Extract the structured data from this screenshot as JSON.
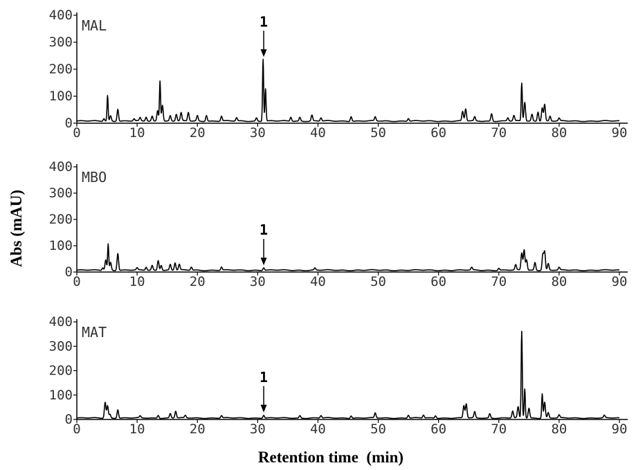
{
  "chart_data": {
    "type": "line",
    "xlabel": "Retention time  (min)",
    "ylabel": "Abs  (mAU)",
    "xlim": [
      0,
      90
    ],
    "ylim": [
      0,
      400
    ],
    "x_ticks": [
      "0",
      "10",
      "20",
      "30",
      "40",
      "50",
      "60",
      "70",
      "80",
      "90"
    ],
    "y_ticks": [
      "0",
      "100",
      "200",
      "300",
      "400"
    ],
    "grid": false,
    "legend": "none",
    "annotation_label": "1",
    "annotation_x": 31,
    "panels": [
      {
        "name": "MAL",
        "annotation_y": 230,
        "baseline": 8,
        "peaks": [
          [
            4.5,
            10
          ],
          [
            5.1,
            95
          ],
          [
            5.6,
            20
          ],
          [
            6.8,
            45
          ],
          [
            9.5,
            8
          ],
          [
            10.5,
            12
          ],
          [
            11.5,
            15
          ],
          [
            12.5,
            18
          ],
          [
            13.4,
            40
          ],
          [
            13.8,
            150
          ],
          [
            14.2,
            60
          ],
          [
            15.5,
            20
          ],
          [
            16.5,
            25
          ],
          [
            17.3,
            30
          ],
          [
            18.5,
            32
          ],
          [
            20.0,
            20
          ],
          [
            21.5,
            22
          ],
          [
            24.0,
            18
          ],
          [
            26.5,
            12
          ],
          [
            29.8,
            12
          ],
          [
            30.9,
            230
          ],
          [
            31.3,
            120
          ],
          [
            35.5,
            15
          ],
          [
            37.0,
            14
          ],
          [
            39.0,
            22
          ],
          [
            40.5,
            12
          ],
          [
            45.5,
            18
          ],
          [
            49.5,
            15
          ],
          [
            55.0,
            10
          ],
          [
            64.0,
            35
          ],
          [
            64.5,
            45
          ],
          [
            66.0,
            15
          ],
          [
            68.8,
            28
          ],
          [
            71.5,
            12
          ],
          [
            72.5,
            20
          ],
          [
            73.8,
            140
          ],
          [
            74.3,
            70
          ],
          [
            75.5,
            25
          ],
          [
            76.5,
            35
          ],
          [
            77.2,
            50
          ],
          [
            77.6,
            62
          ],
          [
            78.5,
            18
          ],
          [
            80.0,
            10
          ]
        ]
      },
      {
        "name": "MBO",
        "annotation_y": 10,
        "baseline": 7,
        "peaks": [
          [
            4.3,
            10
          ],
          [
            4.8,
            40
          ],
          [
            5.2,
            100
          ],
          [
            5.6,
            30
          ],
          [
            6.8,
            65
          ],
          [
            10.0,
            8
          ],
          [
            11.5,
            12
          ],
          [
            12.5,
            18
          ],
          [
            13.5,
            38
          ],
          [
            14.0,
            20
          ],
          [
            15.5,
            22
          ],
          [
            16.3,
            28
          ],
          [
            17.0,
            22
          ],
          [
            19.0,
            12
          ],
          [
            24.0,
            12
          ],
          [
            31.0,
            10
          ],
          [
            39.5,
            8
          ],
          [
            65.5,
            10
          ],
          [
            70.0,
            8
          ],
          [
            72.8,
            20
          ],
          [
            73.8,
            65
          ],
          [
            74.2,
            78
          ],
          [
            74.6,
            40
          ],
          [
            76.0,
            30
          ],
          [
            77.3,
            60
          ],
          [
            77.6,
            70
          ],
          [
            78.2,
            25
          ],
          [
            80.0,
            10
          ]
        ]
      },
      {
        "name": "MAT",
        "annotation_y": 12,
        "baseline": 6,
        "peaks": [
          [
            4.7,
            65
          ],
          [
            5.1,
            50
          ],
          [
            5.5,
            15
          ],
          [
            6.8,
            35
          ],
          [
            10.5,
            8
          ],
          [
            13.5,
            12
          ],
          [
            15.5,
            18
          ],
          [
            16.4,
            28
          ],
          [
            18.0,
            10
          ],
          [
            24.0,
            10
          ],
          [
            31.0,
            12
          ],
          [
            37.0,
            10
          ],
          [
            40.5,
            10
          ],
          [
            45.5,
            10
          ],
          [
            49.5,
            20
          ],
          [
            55.0,
            12
          ],
          [
            57.5,
            12
          ],
          [
            59.5,
            10
          ],
          [
            64.2,
            50
          ],
          [
            64.6,
            58
          ],
          [
            66.0,
            25
          ],
          [
            68.5,
            18
          ],
          [
            72.3,
            28
          ],
          [
            73.2,
            45
          ],
          [
            73.8,
            355
          ],
          [
            74.3,
            120
          ],
          [
            75.0,
            40
          ],
          [
            77.2,
            100
          ],
          [
            77.6,
            65
          ],
          [
            78.2,
            22
          ],
          [
            80.0,
            12
          ],
          [
            87.5,
            10
          ]
        ]
      }
    ]
  }
}
